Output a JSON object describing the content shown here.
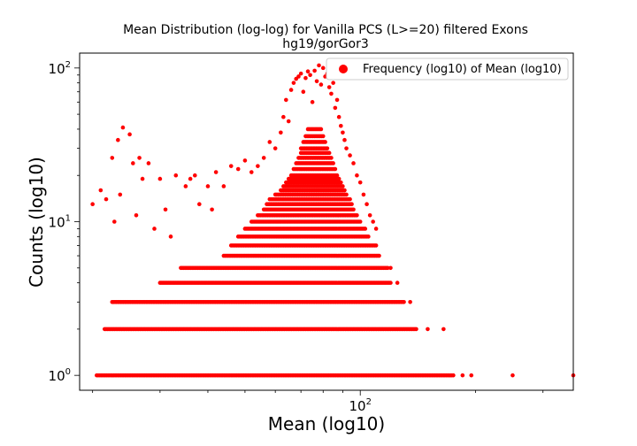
{
  "chart_data": {
    "type": "scatter",
    "title": "Mean Distribution (log-log) for Vanilla PCS (L>=20) filtered Exons",
    "subtitle": "hg19/gorGor3",
    "xlabel": "Mean (log10)",
    "ylabel": "Counts (log10)",
    "x_scale": "log",
    "y_scale": "log",
    "xlim": [
      18.5,
      360
    ],
    "ylim": [
      0.8,
      125
    ],
    "x_ticks": [
      {
        "value": 100,
        "label": "10^2",
        "base": "10",
        "exp": "2"
      }
    ],
    "y_ticks": [
      {
        "value": 1,
        "label": "10^0",
        "base": "10",
        "exp": "0"
      },
      {
        "value": 10,
        "label": "10^1",
        "base": "10",
        "exp": "1"
      },
      {
        "value": 100,
        "label": "10^2",
        "base": "10",
        "exp": "2"
      }
    ],
    "legend": {
      "placement": "top-right"
    },
    "colors": {
      "points": "#ff0000"
    },
    "series": [
      {
        "name": "Frequency (log10) of Mean (log10)",
        "bands": [
          {
            "y": 1,
            "x_min": 20.5,
            "x_max": 175
          },
          {
            "y": 2,
            "x_min": 21.5,
            "x_max": 140
          },
          {
            "y": 3,
            "x_min": 22.5,
            "x_max": 130
          },
          {
            "y": 4,
            "x_min": 30,
            "x_max": 120
          },
          {
            "y": 5,
            "x_min": 34,
            "x_max": 118
          },
          {
            "y": 6,
            "x_min": 44,
            "x_max": 112
          },
          {
            "y": 7,
            "x_min": 46,
            "x_max": 110
          },
          {
            "y": 8,
            "x_min": 48,
            "x_max": 105
          },
          {
            "y": 9,
            "x_min": 50,
            "x_max": 103
          },
          {
            "y": 10,
            "x_min": 52,
            "x_max": 100
          },
          {
            "y": 11,
            "x_min": 54,
            "x_max": 98
          },
          {
            "y": 12,
            "x_min": 56,
            "x_max": 96
          },
          {
            "y": 13,
            "x_min": 57,
            "x_max": 95
          },
          {
            "y": 14,
            "x_min": 58,
            "x_max": 94
          },
          {
            "y": 15,
            "x_min": 60,
            "x_max": 92
          },
          {
            "y": 16,
            "x_min": 62,
            "x_max": 91
          },
          {
            "y": 17,
            "x_min": 63,
            "x_max": 90
          },
          {
            "y": 18,
            "x_min": 64,
            "x_max": 89
          },
          {
            "y": 19,
            "x_min": 65,
            "x_max": 88
          },
          {
            "y": 20,
            "x_min": 66,
            "x_max": 87
          },
          {
            "y": 22,
            "x_min": 67,
            "x_max": 86
          },
          {
            "y": 24,
            "x_min": 68,
            "x_max": 85
          },
          {
            "y": 26,
            "x_min": 69,
            "x_max": 84
          },
          {
            "y": 28,
            "x_min": 70,
            "x_max": 83
          },
          {
            "y": 30,
            "x_min": 70,
            "x_max": 82
          },
          {
            "y": 33,
            "x_min": 71,
            "x_max": 81
          },
          {
            "y": 36,
            "x_min": 72,
            "x_max": 80
          },
          {
            "y": 40,
            "x_min": 73,
            "x_max": 79
          }
        ],
        "points": [
          {
            "x": 250,
            "y": 1
          },
          {
            "x": 360,
            "y": 1
          },
          {
            "x": 195,
            "y": 1
          },
          {
            "x": 185,
            "y": 1
          },
          {
            "x": 165,
            "y": 2
          },
          {
            "x": 150,
            "y": 2
          },
          {
            "x": 135,
            "y": 3
          },
          {
            "x": 125,
            "y": 4
          },
          {
            "x": 120,
            "y": 5
          },
          {
            "x": 20,
            "y": 13
          },
          {
            "x": 21,
            "y": 16
          },
          {
            "x": 21.7,
            "y": 14
          },
          {
            "x": 22.5,
            "y": 26
          },
          {
            "x": 22.8,
            "y": 10
          },
          {
            "x": 23.3,
            "y": 34
          },
          {
            "x": 23.6,
            "y": 15
          },
          {
            "x": 24,
            "y": 41
          },
          {
            "x": 25,
            "y": 37
          },
          {
            "x": 25.5,
            "y": 24
          },
          {
            "x": 26,
            "y": 11
          },
          {
            "x": 26.5,
            "y": 26
          },
          {
            "x": 27,
            "y": 19
          },
          {
            "x": 28,
            "y": 24
          },
          {
            "x": 29,
            "y": 9
          },
          {
            "x": 30,
            "y": 19
          },
          {
            "x": 31,
            "y": 12
          },
          {
            "x": 32,
            "y": 8
          },
          {
            "x": 33,
            "y": 20
          },
          {
            "x": 35,
            "y": 17
          },
          {
            "x": 36,
            "y": 19
          },
          {
            "x": 37,
            "y": 20
          },
          {
            "x": 38,
            "y": 13
          },
          {
            "x": 40,
            "y": 17
          },
          {
            "x": 41,
            "y": 12
          },
          {
            "x": 42,
            "y": 21
          },
          {
            "x": 44,
            "y": 17
          },
          {
            "x": 46,
            "y": 23
          },
          {
            "x": 48,
            "y": 22
          },
          {
            "x": 50,
            "y": 25
          },
          {
            "x": 52,
            "y": 21
          },
          {
            "x": 54,
            "y": 23
          },
          {
            "x": 56,
            "y": 26
          },
          {
            "x": 58,
            "y": 33
          },
          {
            "x": 60,
            "y": 30
          },
          {
            "x": 62,
            "y": 38
          },
          {
            "x": 63,
            "y": 48
          },
          {
            "x": 64,
            "y": 62
          },
          {
            "x": 65,
            "y": 45
          },
          {
            "x": 66,
            "y": 72
          },
          {
            "x": 67,
            "y": 80
          },
          {
            "x": 68,
            "y": 85
          },
          {
            "x": 69,
            "y": 88
          },
          {
            "x": 70,
            "y": 92
          },
          {
            "x": 71,
            "y": 70
          },
          {
            "x": 72,
            "y": 86
          },
          {
            "x": 73,
            "y": 95
          },
          {
            "x": 74,
            "y": 90
          },
          {
            "x": 75,
            "y": 60
          },
          {
            "x": 76,
            "y": 96
          },
          {
            "x": 77,
            "y": 82
          },
          {
            "x": 78,
            "y": 104
          },
          {
            "x": 79,
            "y": 78
          },
          {
            "x": 80,
            "y": 100
          },
          {
            "x": 81,
            "y": 88
          },
          {
            "x": 82,
            "y": 92
          },
          {
            "x": 83,
            "y": 75
          },
          {
            "x": 84,
            "y": 68
          },
          {
            "x": 85,
            "y": 80
          },
          {
            "x": 86,
            "y": 55
          },
          {
            "x": 87,
            "y": 62
          },
          {
            "x": 88,
            "y": 48
          },
          {
            "x": 89,
            "y": 42
          },
          {
            "x": 90,
            "y": 38
          },
          {
            "x": 91,
            "y": 34
          },
          {
            "x": 92,
            "y": 30
          },
          {
            "x": 94,
            "y": 27
          },
          {
            "x": 96,
            "y": 24
          },
          {
            "x": 98,
            "y": 20
          },
          {
            "x": 100,
            "y": 18
          },
          {
            "x": 102,
            "y": 15
          },
          {
            "x": 104,
            "y": 13
          },
          {
            "x": 106,
            "y": 11
          },
          {
            "x": 108,
            "y": 10
          },
          {
            "x": 110,
            "y": 9
          }
        ]
      }
    ]
  }
}
